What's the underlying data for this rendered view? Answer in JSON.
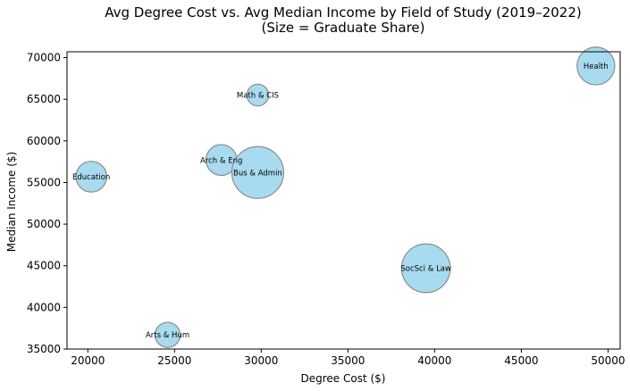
{
  "chart_data": {
    "type": "scatter",
    "title": "Avg Degree Cost vs. Avg Median Income by Field of Study (2019–2022)",
    "subtitle": "(Size = Graduate Share)",
    "xlabel": "Degree Cost ($)",
    "ylabel": "Median Income ($)",
    "xlim": [
      18800,
      50700
    ],
    "ylim": [
      35000,
      70700
    ],
    "xticks": [
      20000,
      25000,
      30000,
      35000,
      40000,
      45000,
      50000
    ],
    "yticks": [
      35000,
      40000,
      45000,
      50000,
      55000,
      60000,
      65000,
      70000
    ],
    "grid": false,
    "bubble_color": "#a8dbef",
    "bubble_edge_color": "#8c8c8c",
    "points": [
      {
        "label": "Health",
        "x": 49300,
        "y": 69000,
        "size": 9
      },
      {
        "label": "Math & CIS",
        "x": 29800,
        "y": 65500,
        "size": 3
      },
      {
        "label": "Arch & Eng",
        "x": 27700,
        "y": 57700,
        "size": 6
      },
      {
        "label": "Bus & Admin",
        "x": 29800,
        "y": 56200,
        "size": 17
      },
      {
        "label": "Education",
        "x": 20200,
        "y": 55700,
        "size": 6
      },
      {
        "label": "SocSci & Law",
        "x": 39500,
        "y": 44700,
        "size": 15
      },
      {
        "label": "Arts & Hum",
        "x": 24600,
        "y": 36700,
        "size": 4
      }
    ]
  }
}
